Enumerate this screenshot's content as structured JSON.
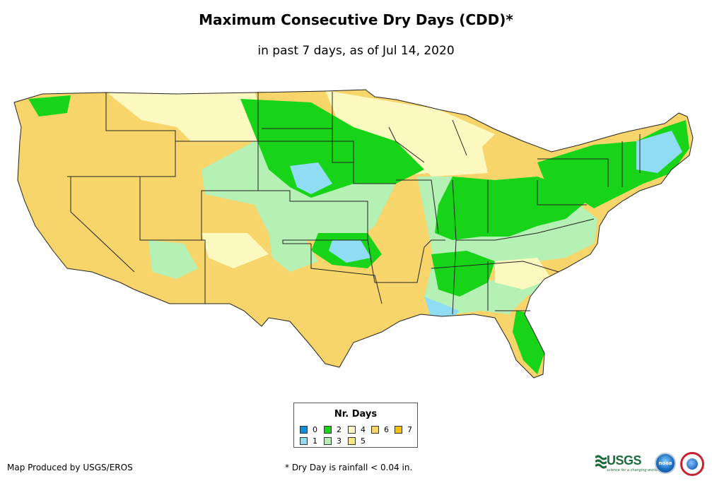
{
  "title": "Maximum Consecutive Dry Days (CDD)*",
  "subtitle": "in past 7 days, as of Jul 14, 2020",
  "legend": {
    "title": "Nr. Days",
    "items": [
      {
        "label": "0",
        "color": "#0a91dd"
      },
      {
        "label": "1",
        "color": "#8fdcf5"
      },
      {
        "label": "2",
        "color": "#18d418"
      },
      {
        "label": "3",
        "color": "#b5f0b5"
      },
      {
        "label": "4",
        "color": "#fbf9bf"
      },
      {
        "label": "5",
        "color": "#fbe97f"
      },
      {
        "label": "6",
        "color": "#f7d56a"
      },
      {
        "label": "7",
        "color": "#f2c200"
      }
    ]
  },
  "footer": {
    "producer": "Map Produced by USGS/EROS",
    "footnote": "* Dry Day is rainfall < 0.04 in."
  },
  "logos": {
    "usgs_text": "USGS",
    "usgs_tagline": "science for a changing world",
    "noaa_text": "noaa"
  },
  "colors": {
    "state_border": "#1a1a1a",
    "outline": "#222222"
  }
}
